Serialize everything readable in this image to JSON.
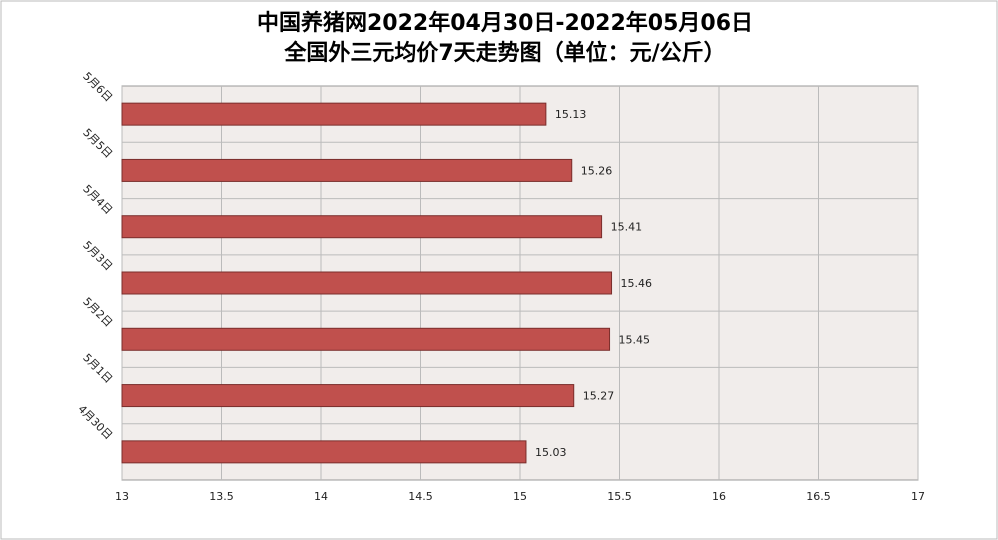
{
  "chart_data": {
    "type": "hbar",
    "title": "中国养猪网2022年04月30日-2022年05月06日",
    "subtitle": "全国外三元均价7天走势图（单位：元/公斤）",
    "categories": [
      "5月6日",
      "5月5日",
      "5月4日",
      "5月3日",
      "5月2日",
      "5月1日",
      "4月30日"
    ],
    "values": [
      15.13,
      15.26,
      15.41,
      15.46,
      15.45,
      15.27,
      15.03
    ],
    "color": "#c0504d",
    "xlim": [
      13,
      17
    ],
    "xticks": [
      13,
      13.5,
      14,
      14.5,
      15,
      15.5,
      16,
      16.5,
      17
    ],
    "grid": true
  }
}
